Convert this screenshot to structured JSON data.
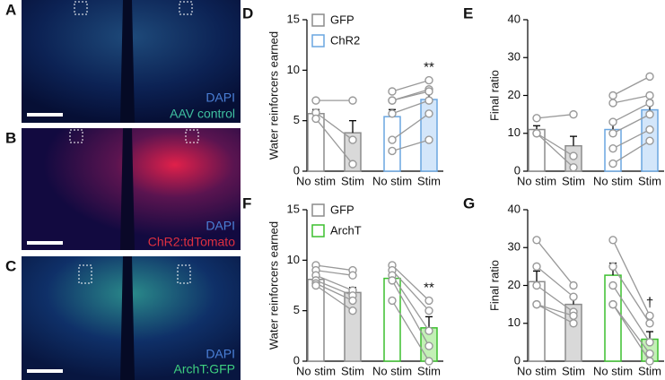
{
  "images": [
    {
      "label": "A",
      "stain": "DAPI",
      "marker": "AAV control"
    },
    {
      "label": "B",
      "stain": "DAPI",
      "marker": "ChR2:tdTomato"
    },
    {
      "label": "C",
      "stain": "DAPI",
      "marker": "ArchT:GFP"
    }
  ],
  "chart_data": [
    {
      "type": "bar",
      "label": "D",
      "ylabel": "Water reinforcers earned",
      "ylim": [
        0,
        15
      ],
      "yticks": [
        0,
        5,
        10,
        15
      ],
      "categories": [
        "No stim",
        "Stim",
        "No stim",
        "Stim"
      ],
      "annotation": "**",
      "series": [
        {
          "name": "GFP",
          "color": "#8c8c8c",
          "fill": "#d9d9d9",
          "means": [
            5.7,
            3.8
          ],
          "sems": [
            0.4,
            1.2
          ],
          "points": [
            [
              7.0,
              5.8,
              5.2
            ],
            [
              7.0,
              3.1,
              0.7
            ]
          ]
        },
        {
          "name": "ChR2",
          "color": "#6aa6e0",
          "fill": "#d3e6fa",
          "means": [
            5.4,
            7.1
          ],
          "sems": [
            0.7,
            0.7
          ],
          "points": [
            [
              7.9,
              7.0,
              7.0,
              5.7,
              3.1,
              2.0
            ],
            [
              9.0,
              8.1,
              7.9,
              7.0,
              5.7,
              3.1
            ]
          ]
        }
      ]
    },
    {
      "type": "bar",
      "label": "E",
      "ylabel": "Final ratio",
      "ylim": [
        0,
        40
      ],
      "yticks": [
        0,
        10,
        20,
        30,
        40
      ],
      "categories": [
        "No stim",
        "Stim",
        "No stim",
        "Stim"
      ],
      "series": [
        {
          "color": "#8c8c8c",
          "fill": "#d9d9d9",
          "means": [
            11,
            6.7
          ],
          "sems": [
            1,
            2.5
          ],
          "points": [
            [
              14,
              10,
              10
            ],
            [
              15,
              4,
              1
            ]
          ]
        },
        {
          "color": "#6aa6e0",
          "fill": "#d3e6fa",
          "means": [
            11,
            16.2
          ],
          "sems": [
            2.2,
            2.4
          ],
          "points": [
            [
              20,
              18,
              13,
              10,
              6,
              2
            ],
            [
              25,
              20,
              18,
              15,
              11,
              8
            ]
          ]
        }
      ]
    },
    {
      "type": "bar",
      "label": "F",
      "ylabel": "Water reinforcers earned",
      "ylim": [
        0,
        15
      ],
      "yticks": [
        0,
        5,
        10,
        15
      ],
      "categories": [
        "No stim",
        "Stim",
        "No stim",
        "Stim"
      ],
      "annotation": "**",
      "series": [
        {
          "name": "GFP",
          "color": "#8c8c8c",
          "fill": "#d9d9d9",
          "means": [
            8.1,
            6.8
          ],
          "sems": [
            0.4,
            0.5
          ],
          "points": [
            [
              9.5,
              9,
              8.5,
              8,
              7.7,
              7.5
            ],
            [
              9,
              8.5,
              7,
              6.5,
              6,
              5
            ]
          ]
        },
        {
          "name": "ArchT",
          "color": "#3cbf2f",
          "fill": "#c3f0b6",
          "means": [
            8.2,
            3.3
          ],
          "sems": [
            0.7,
            1.1
          ],
          "points": [
            [
              9.5,
              9,
              8.5,
              8,
              6
            ],
            [
              6,
              5,
              3,
              1.5,
              0
            ]
          ]
        }
      ]
    },
    {
      "type": "bar",
      "label": "G",
      "ylabel": "Final ratio",
      "ylim": [
        0,
        40
      ],
      "yticks": [
        0,
        10,
        20,
        30,
        40
      ],
      "categories": [
        "No stim",
        "Stim",
        "No stim",
        "Stim"
      ],
      "annotation": "†",
      "series": [
        {
          "color": "#8c8c8c",
          "fill": "#d9d9d9",
          "means": [
            21,
            15
          ],
          "sems": [
            2.8,
            2
          ],
          "points": [
            [
              32,
              25,
              20,
              15,
              15
            ],
            [
              20,
              17,
              13,
              12,
              10
            ]
          ]
        },
        {
          "color": "#3cbf2f",
          "fill": "#c3f0b6",
          "means": [
            22.7,
            5.8
          ],
          "sems": [
            3.2,
            2
          ],
          "points": [
            [
              32,
              25,
              20,
              15,
              15
            ],
            [
              12,
              10,
              5,
              2,
              0
            ]
          ]
        }
      ]
    }
  ]
}
